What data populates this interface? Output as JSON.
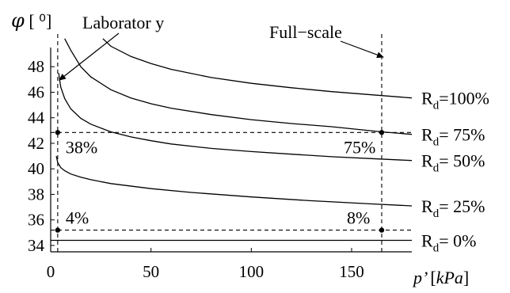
{
  "chart_data": {
    "type": "line",
    "ylabel": {
      "symbol": "φ",
      "unit": "[ ⁰]"
    },
    "xlabel": {
      "symbol": "p’",
      "unit": "kPa"
    },
    "xlim": [
      0,
      180
    ],
    "ylim": [
      33.5,
      50
    ],
    "x_ticks": [
      0,
      50,
      100,
      150
    ],
    "y_ticks": [
      34,
      36,
      38,
      40,
      42,
      44,
      46,
      48
    ],
    "grid": false,
    "series": [
      {
        "name": "R",
        "sub": "d",
        "suffix": "=100%",
        "x": [
          26,
          30,
          40,
          50,
          60,
          80,
          100,
          120,
          140,
          160,
          180
        ],
        "y": [
          50.2,
          49.6,
          48.8,
          48.25,
          47.8,
          47.15,
          46.7,
          46.35,
          46.05,
          45.8,
          45.55
        ]
      },
      {
        "name": "R",
        "sub": "d",
        "suffix": "= 75%",
        "x": [
          7,
          10,
          15,
          20,
          30,
          40,
          50,
          60,
          80,
          100,
          120,
          140,
          165,
          180
        ],
        "y": [
          50.2,
          49.3,
          48.0,
          47.2,
          46.2,
          45.55,
          45.1,
          44.75,
          44.25,
          43.85,
          43.55,
          43.3,
          42.9,
          42.7
        ]
      },
      {
        "name": "R",
        "sub": "d",
        "suffix": "= 50%",
        "x": [
          4,
          5,
          7,
          10,
          15,
          20,
          30,
          40,
          50,
          60,
          80,
          100,
          120,
          140,
          160,
          180
        ],
        "y": [
          47.5,
          46.4,
          45.5,
          44.7,
          43.95,
          43.5,
          42.9,
          42.5,
          42.2,
          41.95,
          41.6,
          41.35,
          41.15,
          40.95,
          40.8,
          40.65
        ]
      },
      {
        "name": "R",
        "sub": "d",
        "suffix": "= 25%",
        "x": [
          2.8,
          3.5,
          5,
          7,
          10,
          15,
          20,
          30,
          50,
          70,
          100,
          130,
          160,
          180
        ],
        "y": [
          41.0,
          40.5,
          40.1,
          39.85,
          39.6,
          39.35,
          39.15,
          38.85,
          38.45,
          38.15,
          37.8,
          37.5,
          37.25,
          37.1
        ]
      },
      {
        "name": "R",
        "sub": "d",
        "suffix": "= 0%",
        "x": [
          0,
          180
        ],
        "y": [
          34.4,
          34.4
        ]
      }
    ],
    "reference_lines": {
      "vertical": [
        3.5,
        165
      ],
      "horizontal": [
        42.85,
        35.2
      ]
    },
    "points": [
      {
        "x": 3.5,
        "y": 42.85
      },
      {
        "x": 165,
        "y": 42.85
      },
      {
        "x": 3.5,
        "y": 35.2
      },
      {
        "x": 165,
        "y": 35.2
      }
    ],
    "point_labels": [
      {
        "text": "38%",
        "x": 3.5,
        "y": 42.85
      },
      {
        "text": "75%",
        "x": 165,
        "y": 42.85
      },
      {
        "text": "4%",
        "x": 3.5,
        "y": 35.2
      },
      {
        "text": "8%",
        "x": 165,
        "y": 35.2
      }
    ],
    "annotations": [
      {
        "text": "Laborator y",
        "target": {
          "x": 3.5,
          "y": 47.2
        }
      },
      {
        "text": "Full−scale",
        "target": {
          "x": 165,
          "y": 49.0
        }
      }
    ]
  }
}
